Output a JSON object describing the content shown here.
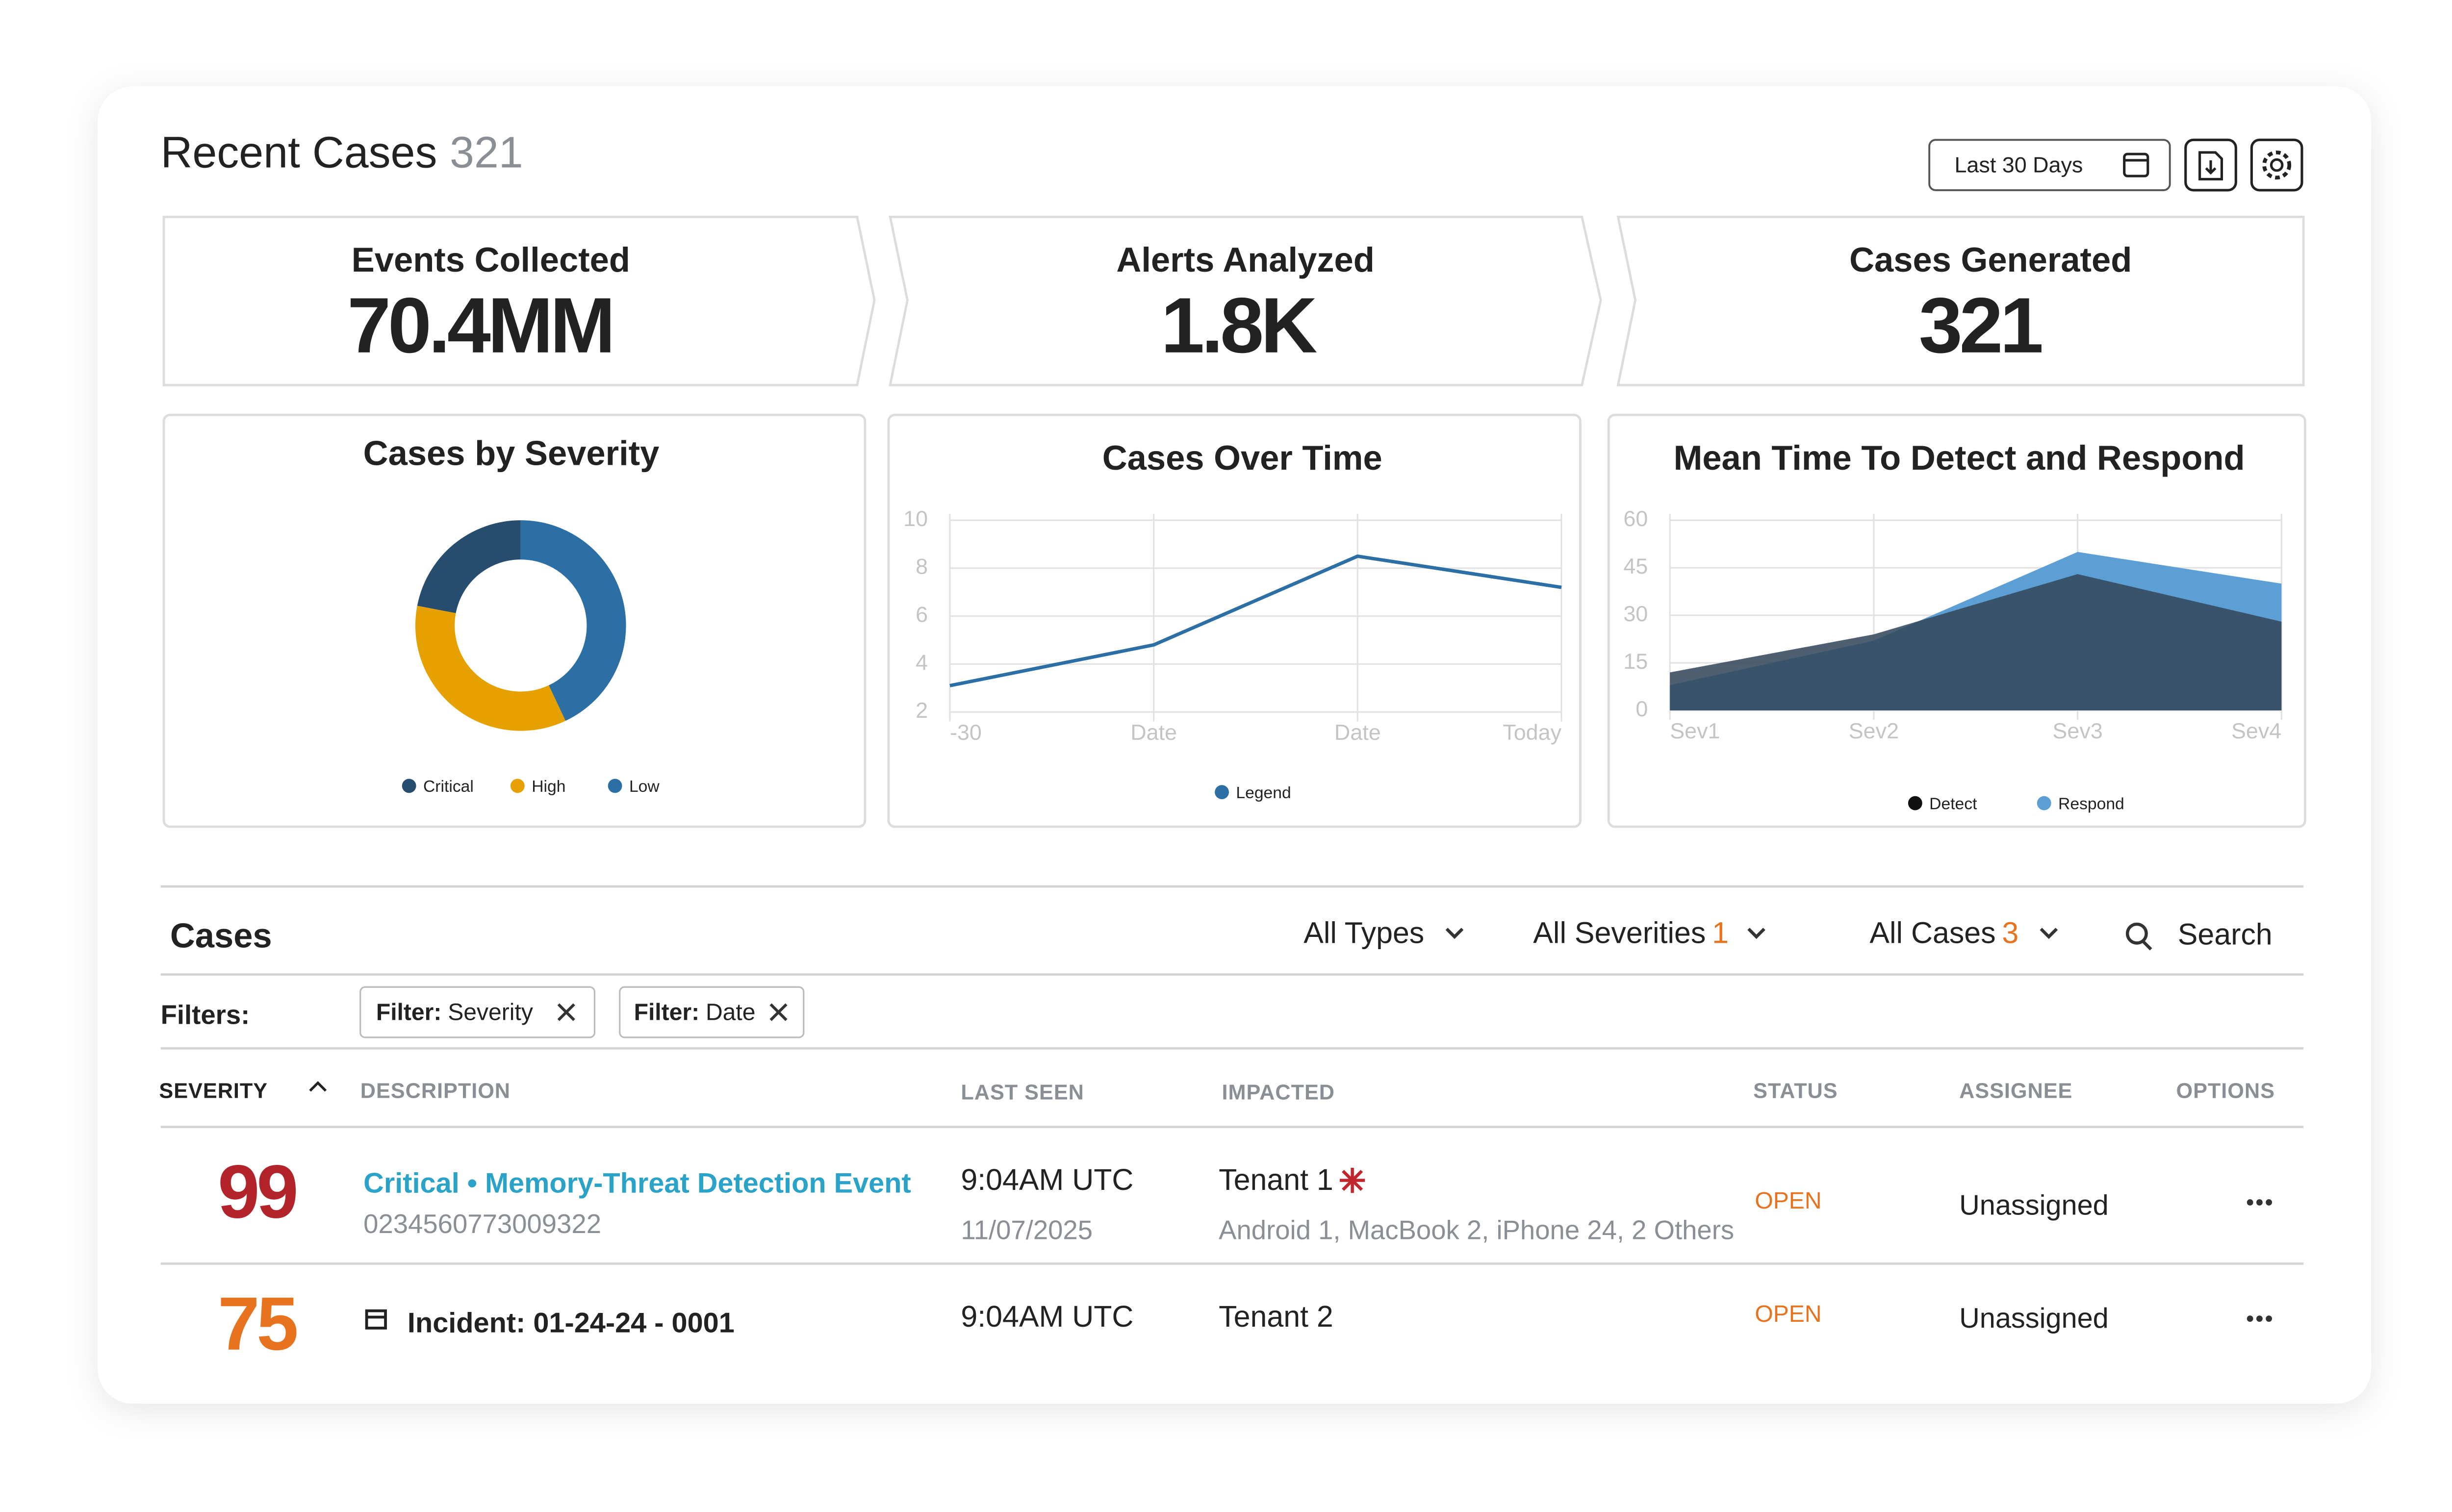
{
  "header": {
    "title": "Recent Cases",
    "count": "321",
    "date_range": "Last 30 Days"
  },
  "stats": [
    {
      "label": "Events Collected",
      "value": "70.4MM"
    },
    {
      "label": "Alerts Analyzed",
      "value": "1.8K"
    },
    {
      "label": "Cases Generated",
      "value": "321"
    }
  ],
  "chart_data": [
    {
      "type": "pie",
      "title": "Cases by Severity",
      "donut": true,
      "categories": [
        "Critical",
        "High",
        "Low"
      ],
      "values": [
        22,
        35,
        43
      ],
      "colors": [
        "#264c6e",
        "#e6a000",
        "#2c6fa4"
      ]
    },
    {
      "type": "line",
      "title": "Cases Over Time",
      "categories": [
        "-30",
        "Date",
        "Date",
        "Today"
      ],
      "series": [
        {
          "name": "Legend",
          "color": "#2c6fa4",
          "values": [
            3.1,
            4.8,
            8.5,
            7.2
          ]
        }
      ],
      "ylim": [
        2,
        10
      ],
      "yticks": [
        2,
        4,
        6,
        8,
        10
      ],
      "grid": true
    },
    {
      "type": "area",
      "title": "Mean Time To Detect and Respond",
      "categories": [
        "Sev1",
        "Sev2",
        "Sev3",
        "Sev4"
      ],
      "series": [
        {
          "name": "Detect",
          "color": "#34495c",
          "values": [
            12,
            24,
            43,
            28
          ]
        },
        {
          "name": "Respond",
          "color": "#5b9fd4",
          "values": [
            8,
            22,
            50,
            40
          ]
        }
      ],
      "ylim": [
        0,
        60
      ],
      "yticks": [
        0,
        15,
        30,
        45,
        60
      ],
      "grid": true
    }
  ],
  "cases": {
    "title": "Cases",
    "menus": [
      {
        "label": "All Types"
      },
      {
        "label": "All Severities",
        "count": "1"
      },
      {
        "label": "All Cases",
        "count": "3"
      }
    ],
    "search": "Search",
    "filters_label": "Filters:",
    "chips": [
      {
        "key": "Filter:",
        "value": "Severity"
      },
      {
        "key": "Filter:",
        "value": "Date"
      }
    ],
    "columns": [
      "SEVERITY",
      "DESCRIPTION",
      "LAST SEEN",
      "IMPACTED",
      "STATUS",
      "ASSIGNEE",
      "OPTIONS"
    ],
    "rows": [
      {
        "severity": 99,
        "title": "Critical • Memory-Threat Detection Event",
        "id": "0234560773009322",
        "last_seen": "9:04AM UTC",
        "date": "11/07/2025",
        "impacted": "Tenant 1",
        "devices": "Android 1, MacBook 2, iPhone 24, 2 Others",
        "status": "OPEN",
        "assignee": "Unassigned"
      },
      {
        "severity": 75,
        "title": "Incident: 01-24-24 - 0001",
        "last_seen": "9:04AM UTC",
        "impacted": "Tenant 2",
        "status": "OPEN",
        "assignee": "Unassigned"
      }
    ]
  }
}
